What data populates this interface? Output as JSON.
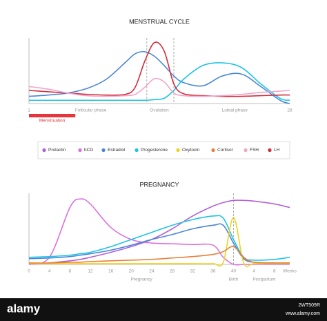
{
  "chart_data": [
    {
      "type": "line",
      "title": "MENSTRUAL CYCLE",
      "x": [
        1,
        3,
        5,
        7,
        9,
        11,
        12,
        13,
        14,
        15,
        16,
        17,
        19,
        21,
        23,
        25,
        27,
        28
      ],
      "xlim": [
        1,
        28
      ],
      "xticks": [
        1,
        28
      ],
      "ylim": [
        0,
        100
      ],
      "grid": false,
      "vlines": [
        13.2,
        16
      ],
      "annotations": [
        {
          "text": "Follicular phase",
          "x": 7.4
        },
        {
          "text": "Ovulation",
          "x": 14.5
        },
        {
          "text": "Luteal phase",
          "x": 22.3
        }
      ],
      "band": {
        "label": "Menstruation",
        "range": [
          1,
          5.8
        ],
        "color": "#e8343c"
      },
      "series": [
        {
          "name": "Estradiol",
          "color": "#4a86d8",
          "values": [
            11,
            13,
            16,
            23,
            37,
            63,
            76,
            79,
            72,
            58,
            42,
            32,
            27,
            42,
            45,
            26,
            5,
            0
          ]
        },
        {
          "name": "Progesterone",
          "color": "#1cc4e4",
          "values": [
            5,
            5,
            5,
            5,
            5,
            5,
            5,
            5,
            6,
            8,
            20,
            37,
            58,
            62,
            55,
            30,
            8,
            5
          ]
        },
        {
          "name": "LH",
          "color": "#d42c3a",
          "values": [
            20,
            18,
            16,
            14,
            13,
            14,
            25,
            65,
            93,
            80,
            30,
            15,
            12,
            11,
            11,
            12,
            13,
            13
          ]
        },
        {
          "name": "FSH",
          "color": "#f0a4c8",
          "values": [
            26,
            22,
            16,
            12,
            11,
            12,
            14,
            25,
            38,
            33,
            16,
            12,
            11,
            12,
            14,
            17,
            19,
            20
          ]
        }
      ]
    },
    {
      "type": "line",
      "title": "PREGNANCY",
      "x": [
        0,
        4,
        8,
        10,
        12,
        16,
        20,
        24,
        28,
        32,
        36,
        38,
        40,
        42,
        44,
        48,
        51
      ],
      "xlim": [
        0,
        51
      ],
      "xlabel": "Weeks",
      "xticks": [
        0,
        4,
        8,
        12,
        16,
        20,
        24,
        28,
        32,
        36,
        40,
        {
          "value": 44,
          "label": "4"
        },
        {
          "value": 48,
          "label": "8"
        }
      ],
      "ylim": [
        0,
        100
      ],
      "grid": false,
      "vlines": [
        40
      ],
      "annotations": [
        {
          "text": "Pregnancy",
          "x": 22
        },
        {
          "text": "Birth",
          "x": 40
        },
        {
          "text": "Postpartum",
          "x": 46
        }
      ],
      "series": [
        {
          "name": "Prolactin",
          "color": "#b35fd8",
          "values": [
            0,
            2,
            5,
            7,
            10,
            17,
            25,
            35,
            50,
            68,
            82,
            87,
            90,
            90,
            89,
            85,
            80
          ]
        },
        {
          "name": "hCG",
          "color": "#dd6ee0",
          "values": [
            0,
            10,
            80,
            92,
            85,
            52,
            35,
            30,
            29,
            28,
            27,
            10,
            0,
            0,
            0,
            0,
            0
          ]
        },
        {
          "name": "Estradiol",
          "color": "#4a86d8",
          "values": [
            8,
            9,
            11,
            13,
            15,
            20,
            27,
            35,
            42,
            50,
            55,
            55,
            30,
            8,
            3,
            2,
            2
          ]
        },
        {
          "name": "Progesterone",
          "color": "#1cc4e4",
          "values": [
            10,
            11,
            13,
            15,
            17,
            25,
            35,
            45,
            55,
            63,
            68,
            65,
            35,
            10,
            6,
            7,
            10
          ]
        },
        {
          "name": "Oxytocin",
          "color": "#f2d21e",
          "values": [
            1,
            1,
            1,
            1,
            1,
            1,
            1,
            1,
            1,
            1,
            1,
            3,
            66,
            2,
            1,
            1,
            1
          ]
        },
        {
          "name": "Cortisol",
          "color": "#e8803a",
          "values": [
            2,
            2,
            3,
            3,
            4,
            5,
            6,
            7,
            9,
            11,
            14,
            18,
            25,
            10,
            3,
            2,
            2
          ]
        }
      ]
    }
  ],
  "watermark": {
    "brand": "alamy",
    "id": "2WT509R",
    "url": "www.alamy.com"
  }
}
